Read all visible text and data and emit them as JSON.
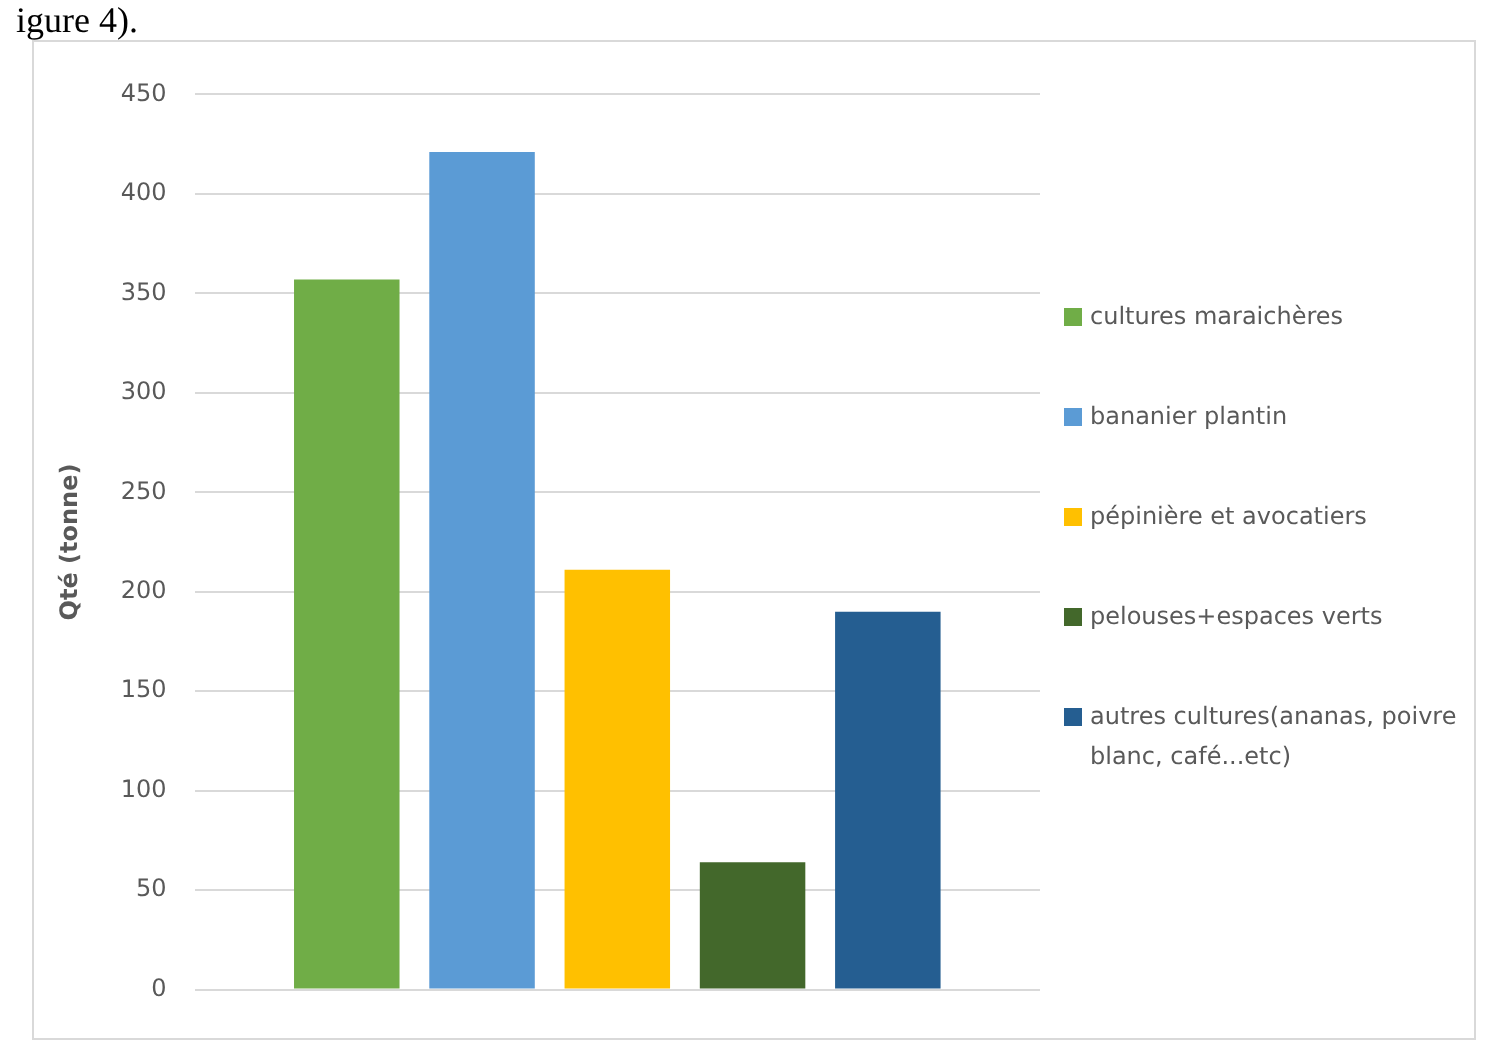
{
  "chart_data": {
    "type": "bar",
    "ylabel": "Qté (tonne)",
    "categories": [
      null
    ],
    "series": [
      {
        "name": "cultures maraichères",
        "color": "#70ad47",
        "values": [
          357
        ]
      },
      {
        "name": "bananier plantin",
        "color": "#5b9bd5",
        "values": [
          421
        ]
      },
      {
        "name": "pépinière et avocatiers",
        "color": "#ffc000",
        "values": [
          211
        ]
      },
      {
        "name": "pelouses+espaces verts",
        "color": "#43682b",
        "values": [
          64
        ]
      },
      {
        "name": "autres cultures(ananas, poivre blanc, café...etc)",
        "color": "#255e91",
        "values": [
          190
        ]
      }
    ],
    "ylim": [
      0,
      450
    ],
    "yticks": [
      0,
      50,
      100,
      150,
      200,
      250,
      300,
      350,
      400,
      450
    ],
    "grid": "y",
    "legend": "right",
    "annotations": [
      "igure 4)."
    ]
  }
}
